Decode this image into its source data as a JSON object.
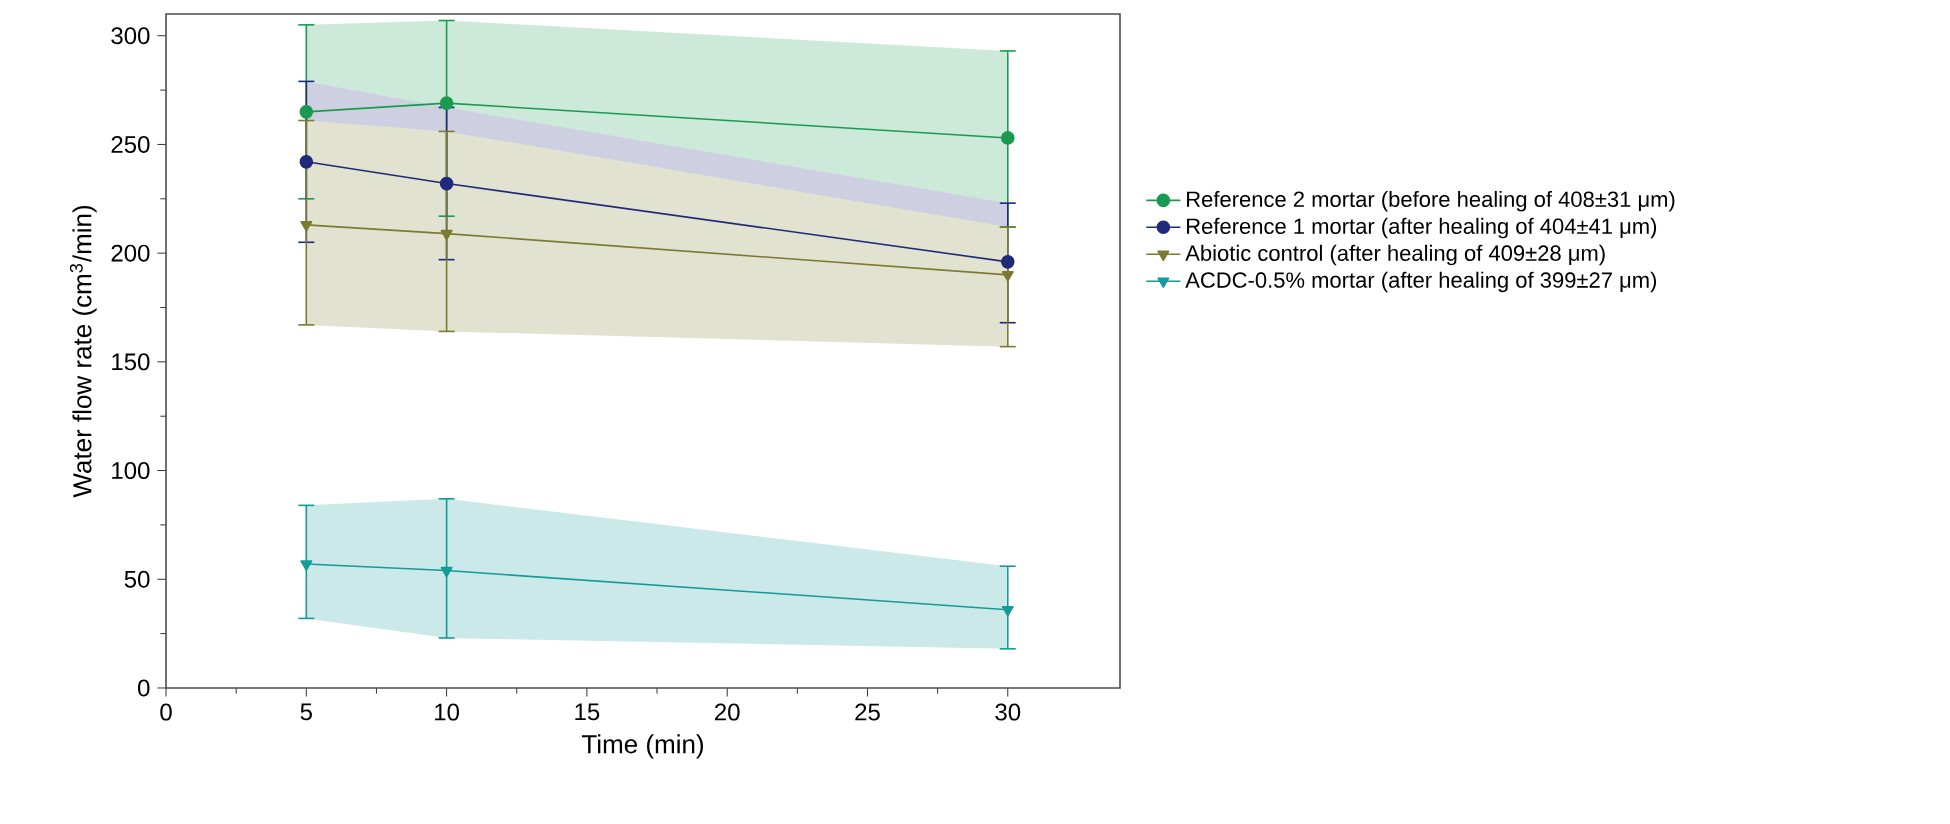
{
  "chart_data": {
    "type": "line",
    "xlabel": "Time (min)",
    "ylabel": "Water flow rate (cm$^{3}$/min)",
    "x": [
      5,
      10,
      30
    ],
    "xlim": [
      0,
      34
    ],
    "ylim": [
      0,
      310
    ],
    "xticks": [
      0,
      5,
      10,
      15,
      20,
      25,
      30
    ],
    "yticks": [
      0,
      50,
      100,
      150,
      200,
      250,
      300
    ],
    "legend": "right",
    "grid": false,
    "line_style": "solid",
    "series": [
      {
        "name": "Reference 2 mortar (before healing of 408±31 μm)",
        "color": "#1a9a50",
        "marker": "circle",
        "values": [
          265,
          269,
          253
        ],
        "errors": [
          [
            225,
            305
          ],
          [
            217,
            307
          ],
          [
            212,
            293
          ]
        ],
        "lower": [
          225,
          217,
          212
        ],
        "upper": [
          305,
          307,
          293
        ]
      },
      {
        "name": "Reference 1 mortar (after healing of 404±41 μm)",
        "color": "#1f2a7a",
        "marker": "circle",
        "values": [
          242,
          232,
          196
        ],
        "errors": [
          [
            205,
            279
          ],
          [
            197,
            267
          ],
          [
            168,
            223
          ]
        ],
        "lower": [
          205,
          197,
          168
        ],
        "upper": [
          279,
          267,
          223
        ]
      },
      {
        "name": "Abiotic control (after healing of 409±28 μm)",
        "color": "#7a7a30",
        "marker": "triangle",
        "values": [
          213,
          209,
          190
        ],
        "errors": [
          [
            167,
            261
          ],
          [
            164,
            256
          ],
          [
            157,
            212
          ]
        ],
        "lower": [
          167,
          164,
          157
        ],
        "upper": [
          261,
          256,
          212
        ]
      },
      {
        "name": "ACDC-0.5% mortar (after healing of 399±27 μm)",
        "color": "#159a9a",
        "marker": "triangle",
        "values": [
          57,
          54,
          36
        ],
        "errors": [
          [
            32,
            84
          ],
          [
            23,
            87
          ],
          [
            18,
            56
          ]
        ],
        "lower": [
          32,
          23,
          18
        ],
        "upper": [
          84,
          87,
          56
        ]
      }
    ]
  }
}
